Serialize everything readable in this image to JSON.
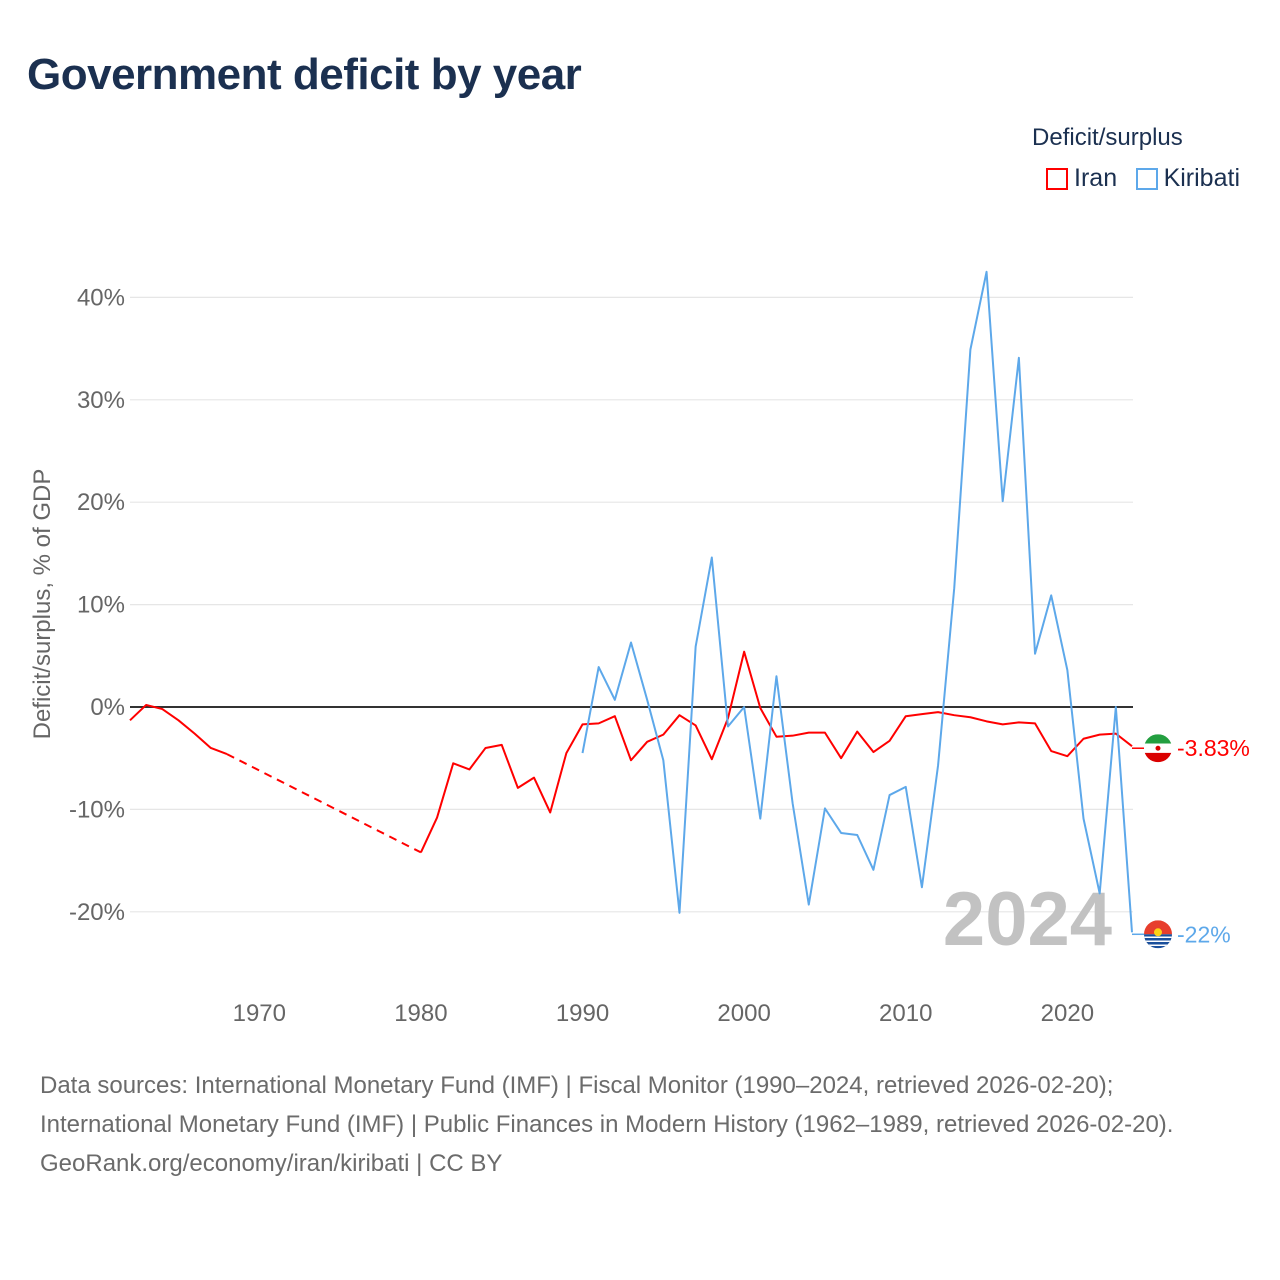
{
  "title": "Government deficit by year",
  "legend": {
    "title": "Deficit/surplus",
    "items": [
      {
        "label": "Iran",
        "color": "#ff0000"
      },
      {
        "label": "Kiribati",
        "color": "#5da8ea"
      }
    ]
  },
  "chart_data": {
    "type": "line",
    "title": "Government deficit by year",
    "ylabel": "Deficit/surplus, % of GDP",
    "xlabel": "",
    "ylim": [
      -25,
      45
    ],
    "xlim": [
      1962,
      2024
    ],
    "yticks": [
      -20,
      -10,
      0,
      10,
      20,
      30,
      40
    ],
    "ytick_labels": [
      "-20%",
      "-10%",
      "0%",
      "10%",
      "20%",
      "30%",
      "40%"
    ],
    "xticks": [
      1970,
      1980,
      1990,
      2000,
      2010,
      2020
    ],
    "xtick_labels": [
      "1970",
      "1980",
      "1990",
      "2000",
      "2010",
      "2020"
    ],
    "grid": true,
    "legend_position": "top-right",
    "year_watermark": "2024",
    "series": [
      {
        "name": "Iran",
        "color": "#ff0000",
        "end_label": "-3.83%",
        "x": [
          1962,
          1963,
          1964,
          1965,
          1966,
          1967,
          1968,
          1980,
          1981,
          1982,
          1983,
          1984,
          1985,
          1986,
          1987,
          1988,
          1989,
          1990,
          1991,
          1992,
          1993,
          1994,
          1995,
          1996,
          1997,
          1998,
          1999,
          2000,
          2001,
          2002,
          2003,
          2004,
          2005,
          2006,
          2007,
          2008,
          2009,
          2010,
          2011,
          2012,
          2013,
          2014,
          2015,
          2016,
          2017,
          2018,
          2019,
          2020,
          2021,
          2022,
          2023,
          2024
        ],
        "values": [
          -1.3,
          0.2,
          -0.2,
          -1.3,
          -2.6,
          -4.0,
          -4.6,
          -14.2,
          -10.8,
          -5.5,
          -6.1,
          -4.0,
          -3.7,
          -7.9,
          -6.9,
          -10.3,
          -4.5,
          -1.7,
          -1.6,
          -0.9,
          -5.2,
          -3.4,
          -2.7,
          -0.8,
          -1.8,
          -5.1,
          -1.1,
          5.4,
          -0.1,
          -2.9,
          -2.8,
          -2.5,
          -2.5,
          -5.0,
          -2.4,
          -4.4,
          -3.3,
          -0.9,
          -0.7,
          -0.5,
          -0.8,
          -1.0,
          -1.4,
          -1.7,
          -1.5,
          -1.6,
          -4.3,
          -4.8,
          -3.1,
          -2.7,
          -2.6,
          -3.83
        ]
      },
      {
        "name": "Kiribati",
        "color": "#5da8ea",
        "end_label": "-22%",
        "x": [
          1990,
          1991,
          1992,
          1993,
          1994,
          1995,
          1996,
          1997,
          1998,
          1999,
          2000,
          2001,
          2002,
          2003,
          2004,
          2005,
          2006,
          2007,
          2008,
          2009,
          2010,
          2011,
          2012,
          2013,
          2014,
          2015,
          2016,
          2017,
          2018,
          2019,
          2020,
          2021,
          2022,
          2023,
          2024
        ],
        "values": [
          -4.5,
          3.9,
          0.7,
          6.3,
          0.7,
          -5.2,
          -20.1,
          5.9,
          14.6,
          -1.9,
          0,
          -10.9,
          3.0,
          -9.4,
          -19.3,
          -9.9,
          -12.3,
          -12.5,
          -15.9,
          -8.6,
          -7.8,
          -17.6,
          -5.7,
          11.6,
          34.9,
          42.5,
          20.1,
          34.1,
          5.2,
          10.9,
          3.6,
          -10.9,
          -18.2,
          0,
          -22
        ]
      }
    ]
  },
  "footer": {
    "sources": "Data sources: International Monetary Fund (IMF) | Fiscal Monitor (1990–2024, retrieved 2026-02-20); International Monetary Fund (IMF) | Public Finances in Modern History (1962–1989, retrieved 2026-02-20).",
    "attribution": "GeoRank.org/economy/iran/kiribati | CC BY"
  }
}
